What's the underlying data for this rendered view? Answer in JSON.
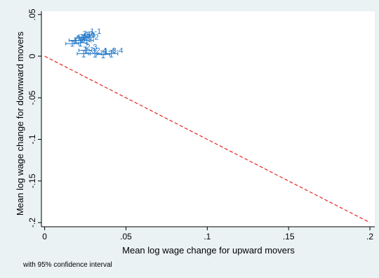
{
  "chart_data": {
    "type": "scatter",
    "xlabel": "Mean log wage change for upward movers",
    "ylabel": "Mean log wage change for downward movers",
    "note": "with 95% confidence interval",
    "xlim": [
      -0.002,
      0.203
    ],
    "ylim": [
      -0.205,
      0.054
    ],
    "xticks": [
      0,
      0.05,
      0.1,
      0.15,
      0.2
    ],
    "xtick_labels": [
      "0",
      ".05",
      ".1",
      ".15",
      ".2"
    ],
    "yticks": [
      0.05,
      0,
      -0.05,
      -0.1,
      -0.15,
      -0.2
    ],
    "ytick_labels": [
      ".05",
      "0",
      "-.05",
      "-.1",
      "-.15",
      "-.2"
    ],
    "grid": false,
    "reference_line": {
      "style": "dashed",
      "color": "#e8231f",
      "x": [
        0,
        0.2
      ],
      "y": [
        0,
        -0.2
      ]
    },
    "marker_color": "#1f77c9",
    "points": [
      {
        "label": "1-1",
        "x": 0.0275,
        "y": 0.026,
        "xerr": 0.003,
        "yerr": 0.003
      },
      {
        "label": "2-1",
        "x": 0.023,
        "y": 0.023,
        "xerr": 0.003,
        "yerr": 0.003
      },
      {
        "label": "3-1",
        "x": 0.024,
        "y": 0.022,
        "xerr": 0.003,
        "yerr": 0.003
      },
      {
        "label": "4-1",
        "x": 0.019,
        "y": 0.019,
        "xerr": 0.004,
        "yerr": 0.003
      },
      {
        "label": "1-2",
        "x": 0.026,
        "y": 0.019,
        "xerr": 0.004,
        "yerr": 0.004
      },
      {
        "label": "3-2",
        "x": 0.022,
        "y": 0.016,
        "xerr": 0.004,
        "yerr": 0.004
      },
      {
        "label": "4-2",
        "x": 0.017,
        "y": 0.015,
        "xerr": 0.004,
        "yerr": 0.003
      },
      {
        "label": "2-3",
        "x": 0.025,
        "y": 0.007,
        "xerr": 0.004,
        "yerr": 0.004
      },
      {
        "label": "1-3",
        "x": 0.024,
        "y": 0.003,
        "xerr": 0.004,
        "yerr": 0.004
      },
      {
        "label": "2-4",
        "x": 0.031,
        "y": 0.003,
        "xerr": 0.004,
        "yerr": 0.004
      },
      {
        "label": "1-4",
        "x": 0.036,
        "y": 0.002,
        "xerr": 0.004,
        "yerr": 0.004
      },
      {
        "label": "3-4",
        "x": 0.041,
        "y": 0.003,
        "xerr": 0.004,
        "yerr": 0.004
      }
    ]
  }
}
